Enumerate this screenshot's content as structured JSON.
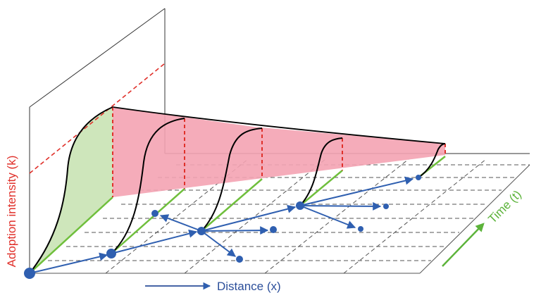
{
  "axes": {
    "y_label": "Adoption intensity (k)",
    "x_label": "Distance (x)",
    "t_label": "Time (t)"
  },
  "colors": {
    "y_axis_label": "#e0302a",
    "x_axis_label": "#2b4e9a",
    "t_axis_label": "#5cb33a",
    "adoption_curve": "#000000",
    "front_region": "#f4a3b3",
    "initial_region": "#c9e3b4",
    "diffusion_network": "#2f5fb0",
    "time_lines": "#6fbf3c",
    "height_markers": "#e0302a",
    "grid": "#555555"
  },
  "icons": {
    "x_axis_arrow": "arrow-right-icon",
    "t_axis_arrow": "arrow-up-right-icon"
  }
}
